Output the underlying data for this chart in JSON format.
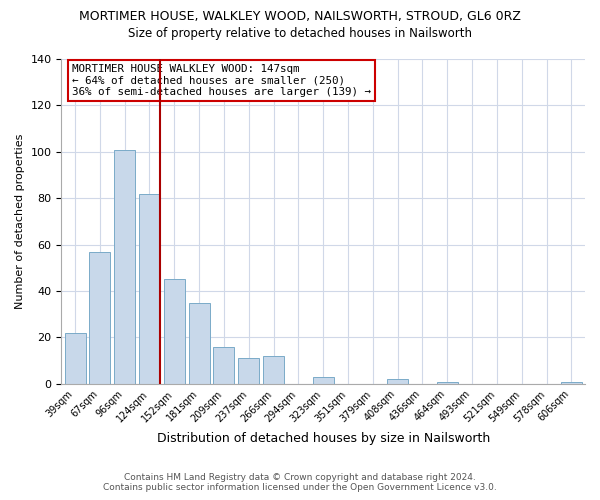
{
  "title": "MORTIMER HOUSE, WALKLEY WOOD, NAILSWORTH, STROUD, GL6 0RZ",
  "subtitle": "Size of property relative to detached houses in Nailsworth",
  "xlabel": "Distribution of detached houses by size in Nailsworth",
  "ylabel": "Number of detached properties",
  "bar_labels": [
    "39sqm",
    "67sqm",
    "96sqm",
    "124sqm",
    "152sqm",
    "181sqm",
    "209sqm",
    "237sqm",
    "266sqm",
    "294sqm",
    "323sqm",
    "351sqm",
    "379sqm",
    "408sqm",
    "436sqm",
    "464sqm",
    "493sqm",
    "521sqm",
    "549sqm",
    "578sqm",
    "606sqm"
  ],
  "bar_values": [
    22,
    57,
    101,
    82,
    45,
    35,
    16,
    11,
    12,
    0,
    3,
    0,
    0,
    2,
    0,
    1,
    0,
    0,
    0,
    0,
    1
  ],
  "bar_color": "#c8d8ea",
  "bar_edge_color": "#7aaac8",
  "highlight_color": "#aa0000",
  "annotation_text": "MORTIMER HOUSE WALKLEY WOOD: 147sqm\n← 64% of detached houses are smaller (250)\n36% of semi-detached houses are larger (139) →",
  "annotation_box_color": "#ffffff",
  "annotation_box_edge": "#cc0000",
  "ylim": [
    0,
    140
  ],
  "yticks": [
    0,
    20,
    40,
    60,
    80,
    100,
    120,
    140
  ],
  "footer_line1": "Contains HM Land Registry data © Crown copyright and database right 2024.",
  "footer_line2": "Contains public sector information licensed under the Open Government Licence v3.0.",
  "bg_color": "#ffffff",
  "grid_color": "#d0d8e8"
}
